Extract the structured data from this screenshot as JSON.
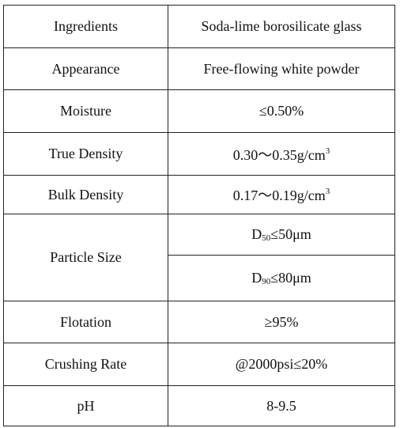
{
  "table": {
    "rows": [
      {
        "label": "Ingredients",
        "value": {
          "text": "Soda-lime borosilicate glass"
        }
      },
      {
        "label": "Appearance",
        "value": {
          "text": "Free-flowing white powder"
        }
      },
      {
        "label": "Moisture",
        "value": {
          "text": "≤0.50%"
        }
      },
      {
        "label": "True Density",
        "value": {
          "text": "0.30～0.35g/cm",
          "sup": "3"
        }
      },
      {
        "label": "Bulk Density",
        "value": {
          "text": "0.17～0.19g/cm",
          "sup": "3"
        }
      },
      {
        "label": "Particle Size",
        "values": [
          {
            "text": "D",
            "sub": "50",
            "rest": "≤50μm"
          },
          {
            "text": "D",
            "sub": "90",
            "rest": "≤80μm"
          }
        ]
      },
      {
        "label": "Flotation",
        "value": {
          "text": "≥95%"
        }
      },
      {
        "label": "Crushing Rate",
        "value": {
          "text": "@2000psi≤20%"
        }
      },
      {
        "label": "pH",
        "value": {
          "text": "8-9.5"
        }
      }
    ]
  }
}
